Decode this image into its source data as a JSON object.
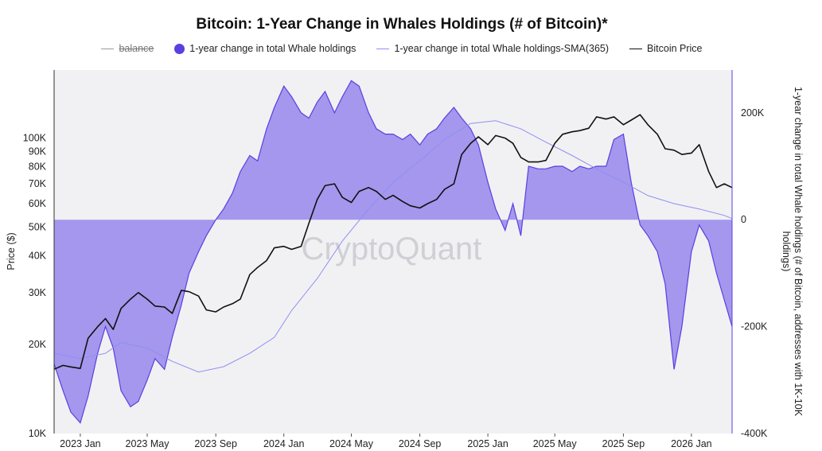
{
  "chart_data": {
    "type": "area",
    "title": "Bitcoin: 1-Year Change in Whales Holdings (# of Bitcoin)*",
    "legend": [
      {
        "label": "balance",
        "style": "line",
        "color": "#999999",
        "struck_through": true
      },
      {
        "label": "1-year change in total Whale holdings",
        "style": "dot",
        "color": "#5b3fe0"
      },
      {
        "label": "1-year change in total Whale holdings-SMA(365)",
        "style": "thin-line",
        "color": "#8f8ff2"
      },
      {
        "label": "Bitcoin Price",
        "style": "line",
        "color": "#111111"
      }
    ],
    "legend_position": "top",
    "watermark": "CryptoQuant",
    "x_ticks": [
      "2023 Jan",
      "2023 May",
      "2023 Sep",
      "2024 Jan",
      "2024 May",
      "2024 Sep",
      "2025 Jan",
      "2025 May",
      "2025 Sep",
      "2026 Jan"
    ],
    "y_left": {
      "label": "Price ($)",
      "scale": "log",
      "range": [
        10000,
        170000
      ],
      "ticks": [
        "10K",
        "20K",
        "30K",
        "40K",
        "50K",
        "60K",
        "70K",
        "80K",
        "90K",
        "100K"
      ]
    },
    "y_right": {
      "label": "1-year change in total Whale holdings (# of Bitcoin, addresses with 1K-10K holdings)",
      "range": [
        -400000,
        280000
      ],
      "ticks": [
        "200K",
        "0",
        "-200K",
        "-400K"
      ]
    },
    "grid": false,
    "colors": {
      "area": "#9f91ec",
      "area_edge": "#5b3fe0",
      "price": "#111111",
      "sma": "#8f8ff2",
      "plot_bg": "#f1f1f3"
    },
    "x_date_range": [
      "2022-11-15",
      "2026-03-15"
    ],
    "series": [
      {
        "name": "1-year change in total Whale holdings",
        "axis": "right",
        "x": [
          "2022-11-15",
          "2022-12-01",
          "2022-12-15",
          "2023-01-01",
          "2023-01-15",
          "2023-02-01",
          "2023-02-15",
          "2023-03-01",
          "2023-03-15",
          "2023-04-01",
          "2023-04-15",
          "2023-05-01",
          "2023-05-15",
          "2023-06-01",
          "2023-06-15",
          "2023-07-01",
          "2023-07-15",
          "2023-08-01",
          "2023-08-15",
          "2023-09-01",
          "2023-09-15",
          "2023-10-01",
          "2023-10-15",
          "2023-11-01",
          "2023-11-15",
          "2023-12-01",
          "2023-12-15",
          "2024-01-01",
          "2024-01-15",
          "2024-02-01",
          "2024-02-15",
          "2024-03-01",
          "2024-03-15",
          "2024-04-01",
          "2024-04-15",
          "2024-05-01",
          "2024-05-15",
          "2024-06-01",
          "2024-06-15",
          "2024-07-01",
          "2024-07-15",
          "2024-08-01",
          "2024-08-15",
          "2024-09-01",
          "2024-09-15",
          "2024-10-01",
          "2024-10-15",
          "2024-11-01",
          "2024-11-15",
          "2024-12-01",
          "2024-12-15",
          "2025-01-01",
          "2025-01-15",
          "2025-02-01",
          "2025-02-15",
          "2025-03-01",
          "2025-03-15",
          "2025-04-01",
          "2025-04-15",
          "2025-05-01",
          "2025-05-15",
          "2025-06-01",
          "2025-06-15",
          "2025-07-01",
          "2025-07-15",
          "2025-08-01",
          "2025-08-15",
          "2025-09-01",
          "2025-09-15",
          "2025-10-01",
          "2025-10-15",
          "2025-11-01",
          "2025-11-15",
          "2025-12-01",
          "2025-12-15",
          "2026-01-01",
          "2026-01-15",
          "2026-02-01",
          "2026-02-15",
          "2026-03-01",
          "2026-03-15"
        ],
        "y": [
          -270000,
          -320000,
          -360000,
          -380000,
          -330000,
          -250000,
          -200000,
          -240000,
          -320000,
          -350000,
          -340000,
          -300000,
          -260000,
          -280000,
          -220000,
          -160000,
          -100000,
          -60000,
          -30000,
          0,
          20000,
          50000,
          90000,
          120000,
          110000,
          170000,
          210000,
          250000,
          230000,
          200000,
          190000,
          220000,
          240000,
          200000,
          230000,
          260000,
          250000,
          200000,
          170000,
          160000,
          160000,
          150000,
          160000,
          140000,
          160000,
          170000,
          190000,
          210000,
          190000,
          170000,
          140000,
          70000,
          20000,
          -20000,
          30000,
          -30000,
          100000,
          95000,
          95000,
          100000,
          100000,
          90000,
          100000,
          95000,
          100000,
          100000,
          150000,
          160000,
          70000,
          -10000,
          -30000,
          -60000,
          -120000,
          -280000,
          -200000,
          -60000,
          -10000,
          -40000,
          -100000,
          -150000,
          -200000
        ]
      },
      {
        "name": "1-year change in total Whale holdings-SMA(365)",
        "axis": "right",
        "x": [
          "2022-11-15",
          "2023-01-01",
          "2023-02-15",
          "2023-03-15",
          "2023-05-01",
          "2023-06-15",
          "2023-08-01",
          "2023-09-15",
          "2023-11-01",
          "2023-12-15",
          "2024-01-15",
          "2024-03-01",
          "2024-04-15",
          "2024-06-01",
          "2024-07-15",
          "2024-09-01",
          "2024-10-15",
          "2024-12-01",
          "2025-01-15",
          "2025-03-01",
          "2025-04-15",
          "2025-06-01",
          "2025-07-15",
          "2025-09-01",
          "2025-10-15",
          "2025-12-01",
          "2026-01-15",
          "2026-03-01",
          "2026-03-15"
        ],
        "y": [
          -250000,
          -260000,
          -250000,
          -230000,
          -240000,
          -265000,
          -285000,
          -275000,
          -250000,
          -220000,
          -170000,
          -110000,
          -40000,
          20000,
          70000,
          110000,
          150000,
          180000,
          185000,
          170000,
          145000,
          120000,
          95000,
          70000,
          45000,
          30000,
          20000,
          8000,
          2000
        ]
      },
      {
        "name": "Bitcoin Price",
        "axis": "left",
        "x": [
          "2022-11-15",
          "2022-12-01",
          "2022-12-15",
          "2023-01-01",
          "2023-01-15",
          "2023-02-01",
          "2023-02-15",
          "2023-03-01",
          "2023-03-15",
          "2023-04-01",
          "2023-04-15",
          "2023-05-01",
          "2023-05-15",
          "2023-06-01",
          "2023-06-15",
          "2023-07-01",
          "2023-07-15",
          "2023-08-01",
          "2023-08-15",
          "2023-09-01",
          "2023-09-15",
          "2023-10-01",
          "2023-10-15",
          "2023-11-01",
          "2023-11-15",
          "2023-12-01",
          "2023-12-15",
          "2024-01-01",
          "2024-01-15",
          "2024-02-01",
          "2024-02-15",
          "2024-03-01",
          "2024-03-15",
          "2024-04-01",
          "2024-04-15",
          "2024-05-01",
          "2024-05-15",
          "2024-06-01",
          "2024-06-15",
          "2024-07-01",
          "2024-07-15",
          "2024-08-01",
          "2024-08-15",
          "2024-09-01",
          "2024-09-15",
          "2024-10-01",
          "2024-10-15",
          "2024-11-01",
          "2024-11-15",
          "2024-12-01",
          "2024-12-15",
          "2025-01-01",
          "2025-01-15",
          "2025-02-01",
          "2025-02-15",
          "2025-03-01",
          "2025-03-15",
          "2025-04-01",
          "2025-04-15",
          "2025-05-01",
          "2025-05-15",
          "2025-06-01",
          "2025-06-15",
          "2025-07-01",
          "2025-07-15",
          "2025-08-01",
          "2025-08-15",
          "2025-09-01",
          "2025-09-15",
          "2025-10-01",
          "2025-10-15",
          "2025-11-01",
          "2025-11-15",
          "2025-12-01",
          "2025-12-15",
          "2026-01-01",
          "2026-01-15",
          "2026-02-01",
          "2026-02-15",
          "2026-03-01",
          "2026-03-15"
        ],
        "y": [
          16500,
          17000,
          16800,
          16600,
          21000,
          23000,
          24500,
          22500,
          26500,
          28500,
          30000,
          28500,
          27000,
          26800,
          25500,
          30500,
          30200,
          29200,
          26200,
          25800,
          26800,
          27500,
          28500,
          34500,
          36500,
          38500,
          42500,
          43000,
          42000,
          43000,
          51500,
          62000,
          69000,
          70000,
          63000,
          60500,
          66000,
          68000,
          66000,
          62000,
          64000,
          61000,
          59000,
          58000,
          60000,
          62000,
          67000,
          70000,
          88000,
          96000,
          101000,
          95000,
          102000,
          100000,
          96000,
          86000,
          83000,
          83000,
          84000,
          96000,
          103000,
          105000,
          106000,
          108000,
          118000,
          116000,
          118000,
          111000,
          115000,
          120000,
          111000,
          103000,
          92000,
          91000,
          88000,
          89000,
          95000,
          77000,
          68000,
          70000,
          68000
        ]
      }
    ]
  }
}
